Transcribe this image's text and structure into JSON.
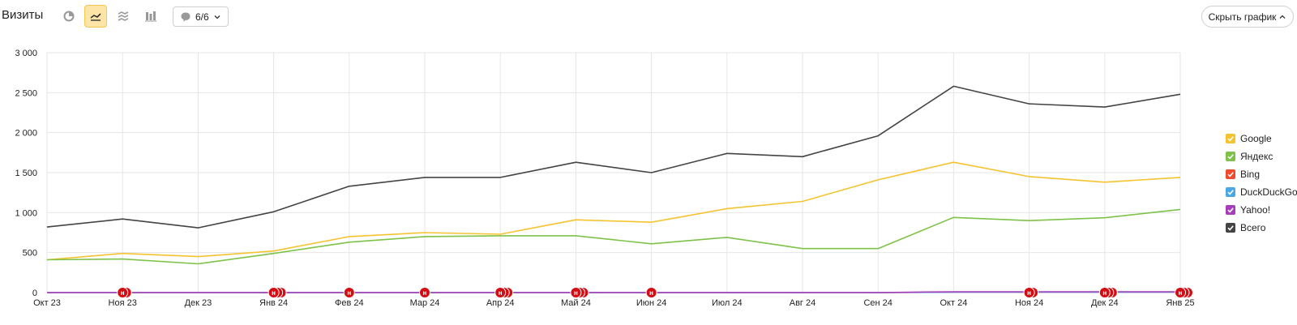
{
  "header": {
    "title": "Визиты",
    "notes_count": "6/6",
    "hide_chart_label": "Скрыть график"
  },
  "chart_data": {
    "type": "line",
    "categories": [
      "Окт 23",
      "Ноя 23",
      "Дек 23",
      "Янв 24",
      "Фев 24",
      "Мар 24",
      "Апр 24",
      "Май 24",
      "Июн 24",
      "Июл 24",
      "Авг 24",
      "Сен 24",
      "Окт 24",
      "Ноя 24",
      "Дек 24",
      "Янв 25"
    ],
    "ylim": [
      0,
      3000
    ],
    "yticks": [
      0,
      500,
      1000,
      1500,
      2000,
      2500,
      3000
    ],
    "ytick_labels": [
      "0",
      "500",
      "1 000",
      "1 500",
      "2 000",
      "2 500",
      "3 000"
    ],
    "grid": true,
    "legend_position": "right",
    "series": [
      {
        "name": "Google",
        "color": "#f5c330",
        "values": [
          410,
          490,
          450,
          520,
          700,
          750,
          730,
          910,
          880,
          1050,
          1140,
          1410,
          1630,
          1450,
          1380,
          1440
        ]
      },
      {
        "name": "Яндекс",
        "color": "#7fc24a",
        "values": [
          410,
          420,
          360,
          490,
          630,
          700,
          710,
          710,
          610,
          690,
          550,
          550,
          940,
          900,
          935,
          1040
        ]
      },
      {
        "name": "Bing",
        "color": "#f04a2f",
        "values": [
          0,
          0,
          0,
          0,
          0,
          0,
          0,
          0,
          0,
          0,
          0,
          0,
          5,
          5,
          5,
          5
        ]
      },
      {
        "name": "DuckDuckGo",
        "color": "#4aa8e8",
        "values": [
          0,
          0,
          0,
          0,
          0,
          0,
          0,
          0,
          0,
          0,
          0,
          0,
          5,
          5,
          5,
          5
        ]
      },
      {
        "name": "Yahoo!",
        "color": "#a63dbc",
        "values": [
          0,
          0,
          0,
          0,
          0,
          0,
          0,
          0,
          0,
          0,
          0,
          0,
          10,
          10,
          10,
          10
        ]
      },
      {
        "name": "Всего",
        "color": "#444444",
        "values": [
          820,
          920,
          810,
          1010,
          1330,
          1440,
          1440,
          1630,
          1500,
          1740,
          1700,
          1960,
          2580,
          2360,
          2320,
          2480
        ]
      }
    ],
    "annotations": [
      {
        "x": "Ноя 23",
        "count": 2
      },
      {
        "x": "Янв 24",
        "count": 3
      },
      {
        "x": "Фев 24",
        "count": 1
      },
      {
        "x": "Мар 24",
        "count": 1
      },
      {
        "x": "Апр 24",
        "count": 3
      },
      {
        "x": "Май 24",
        "count": 3
      },
      {
        "x": "Июн 24",
        "count": 1
      },
      {
        "x": "Ноя 24",
        "count": 2
      },
      {
        "x": "Дек 24",
        "count": 3
      },
      {
        "x": "Янв 25",
        "count": 3
      }
    ],
    "annotation_marker_label": "н"
  }
}
